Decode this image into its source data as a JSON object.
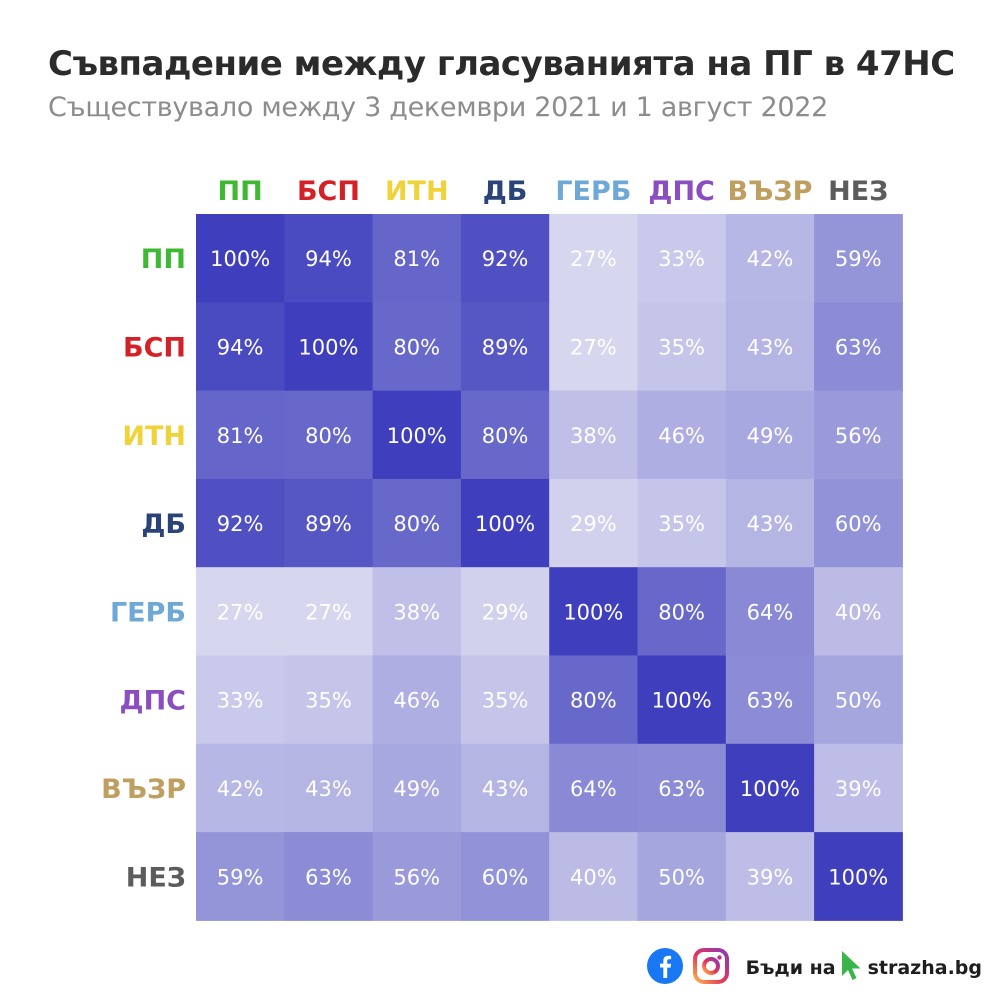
{
  "title": "Съвпадение между гласуванията на ПГ в 47НС",
  "subtitle": "Съществувало между 3 декември 2021 и 1 август 2022",
  "chart_data": {
    "type": "heatmap",
    "x_categories": [
      "ПП",
      "БСП",
      "ИТН",
      "ДБ",
      "ГЕРБ",
      "ДПС",
      "ВЪЗР",
      "НЕЗ"
    ],
    "y_categories": [
      "ПП",
      "БСП",
      "ИТН",
      "ДБ",
      "ГЕРБ",
      "ДПС",
      "ВЪЗР",
      "НЕЗ"
    ],
    "category_colors": [
      "#3fb934",
      "#d42027",
      "#f0d23a",
      "#2a4478",
      "#6ea8d6",
      "#8a4ec0",
      "#bf9f60",
      "#5c5c5c"
    ],
    "values": [
      [
        100,
        94,
        81,
        92,
        27,
        33,
        42,
        59
      ],
      [
        94,
        100,
        80,
        89,
        27,
        35,
        43,
        63
      ],
      [
        81,
        80,
        100,
        80,
        38,
        46,
        49,
        56
      ],
      [
        92,
        89,
        80,
        100,
        29,
        35,
        43,
        60
      ],
      [
        27,
        27,
        38,
        29,
        100,
        80,
        64,
        40
      ],
      [
        33,
        35,
        46,
        35,
        80,
        100,
        63,
        50
      ],
      [
        42,
        43,
        49,
        43,
        64,
        63,
        100,
        39
      ],
      [
        59,
        63,
        56,
        60,
        40,
        50,
        39,
        100
      ]
    ],
    "value_suffix": "%",
    "color_scale": {
      "low": "#e4e4f4",
      "high": "#3f3fbd"
    }
  },
  "footer": {
    "icons": [
      "facebook-icon",
      "instagram-icon",
      "cursor-arrow-icon"
    ],
    "brand_text": "Бъди на",
    "brand_site": "strazha.bg",
    "brand_cursor_color": "#39b54a"
  }
}
